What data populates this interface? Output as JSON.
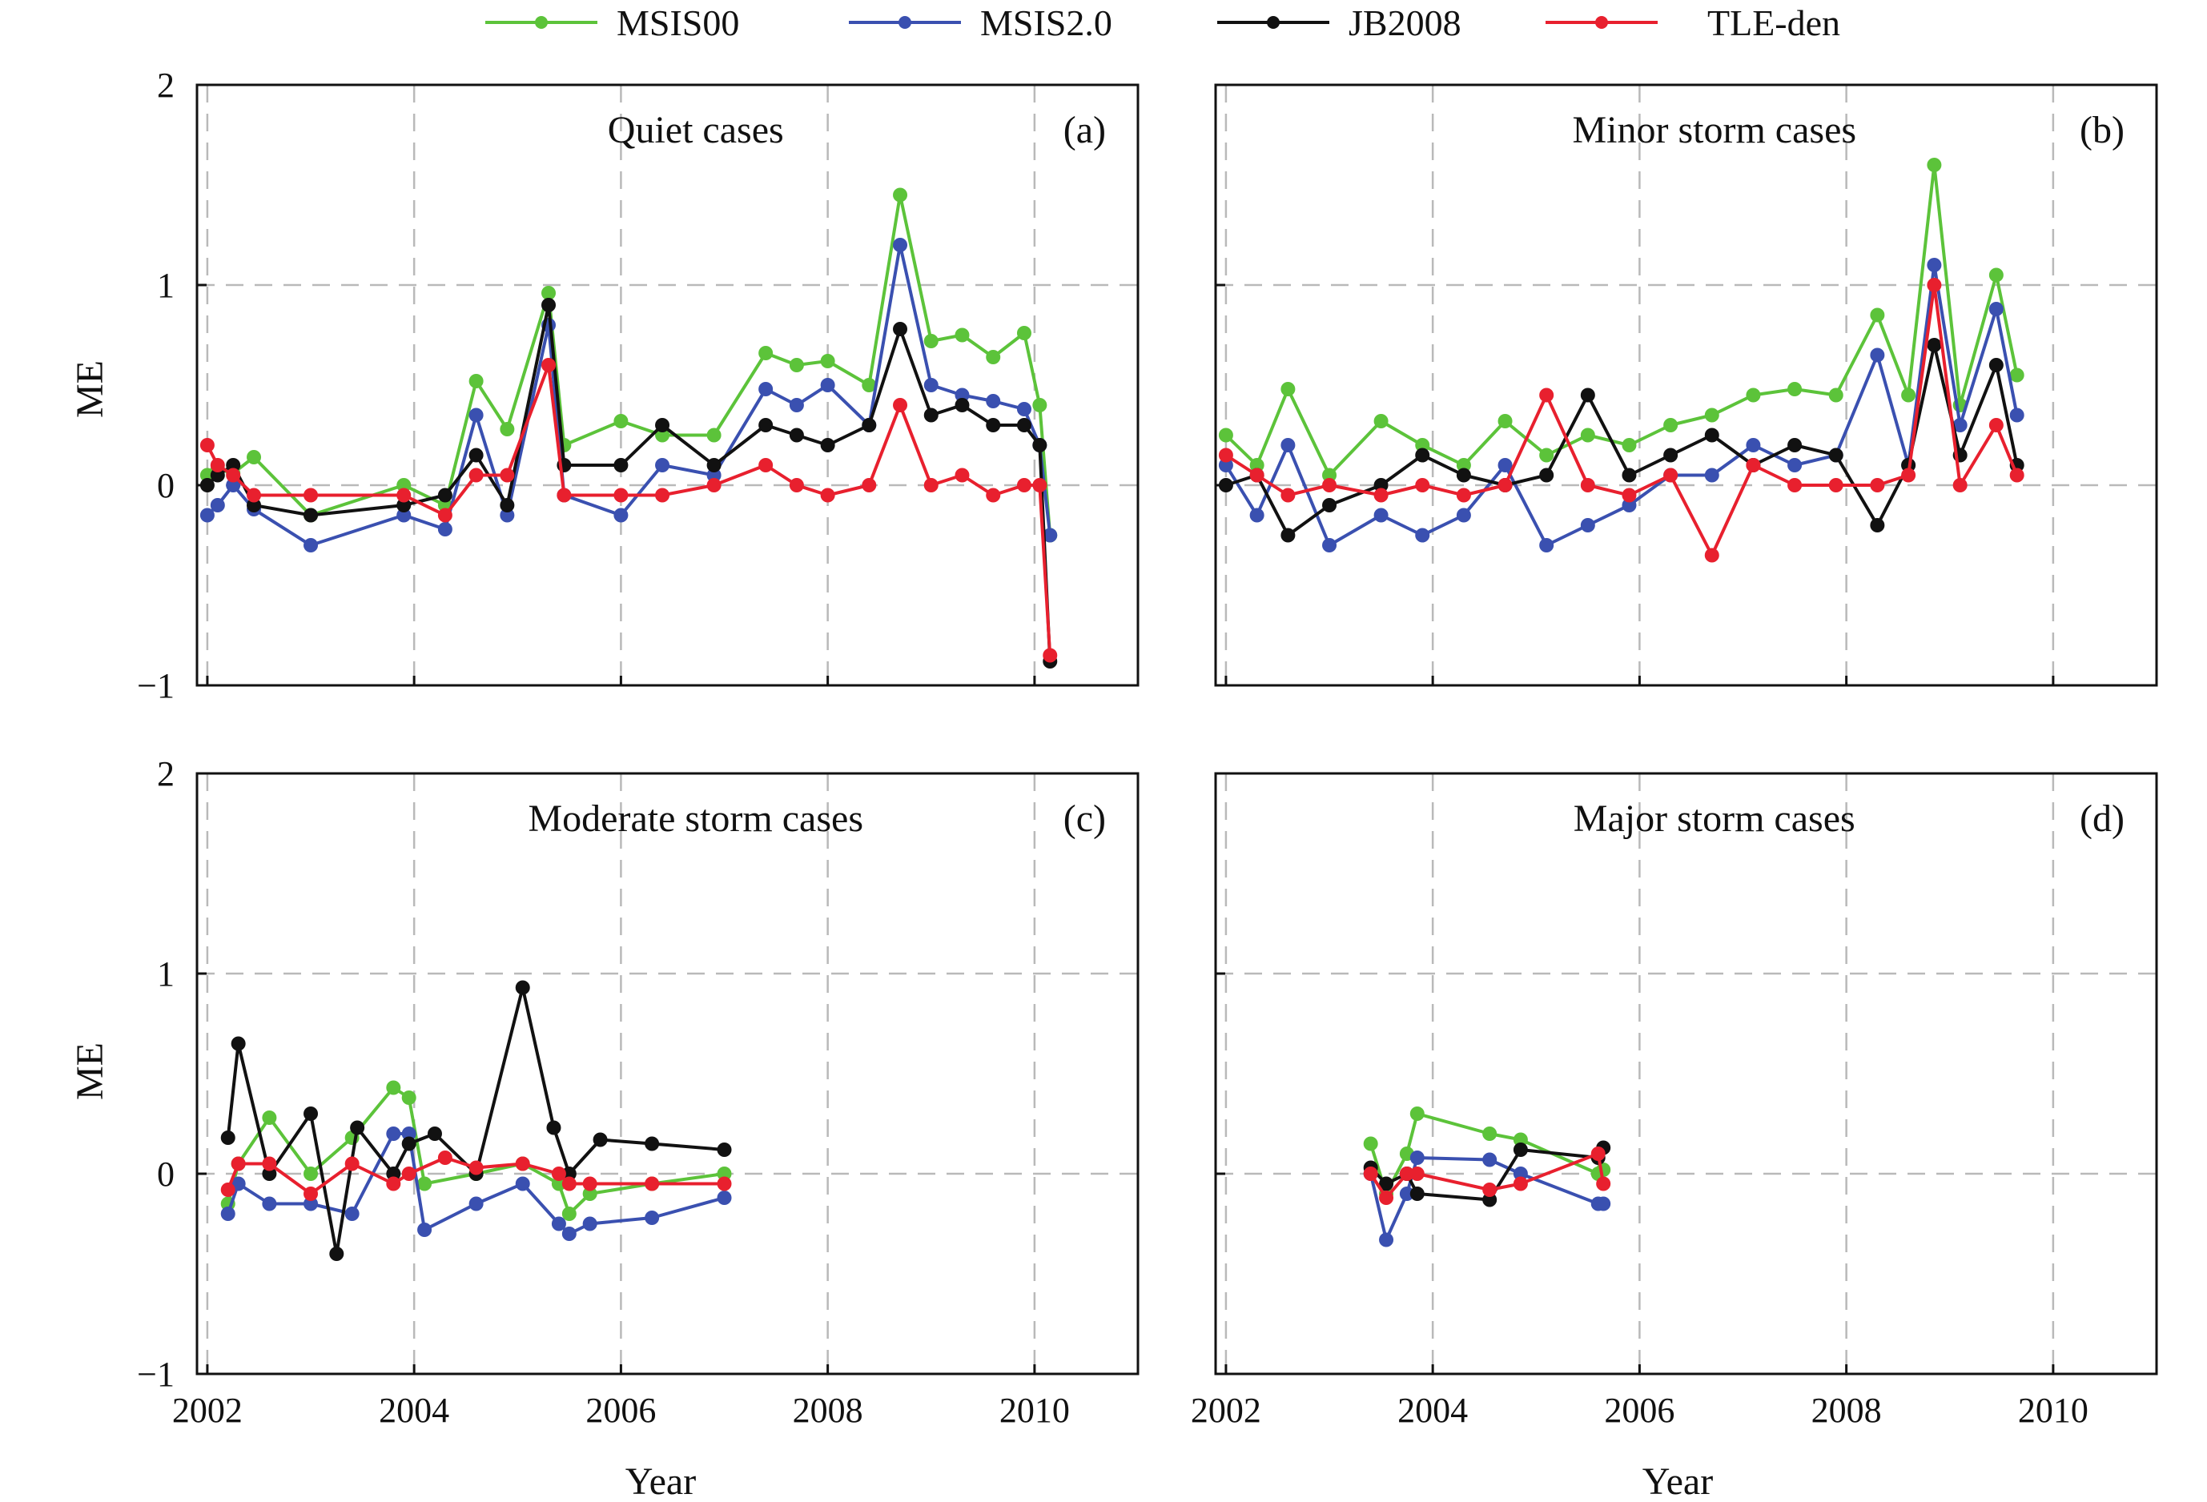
{
  "legend": [
    {
      "name": "MSIS00",
      "color": "#5cc33a"
    },
    {
      "name": "MSIS2.0",
      "color": "#3a50b0"
    },
    {
      "name": "JB2008",
      "color": "#111111"
    },
    {
      "name": "TLE-den",
      "color": "#e8202e"
    }
  ],
  "x_ticks": [
    "2002",
    "2004",
    "2006",
    "2008",
    "2010"
  ],
  "y_ticks": [
    "2",
    "1",
    "0",
    "−1"
  ],
  "y_label": "ME",
  "x_label": "Year",
  "chart_data": [
    {
      "type": "line",
      "panel_label": "(a)",
      "title": "Quiet cases",
      "xlabel": "",
      "ylabel": "ME",
      "xlim": [
        2001.9,
        2011.0
      ],
      "ylim": [
        -1,
        2
      ],
      "grid": true,
      "series": [
        {
          "name": "MSIS00",
          "x": [
            2002.0,
            2002.1,
            2002.25,
            2002.45,
            2003.0,
            2003.9,
            2004.3,
            2004.6,
            2004.9,
            2005.3,
            2005.45,
            2006.0,
            2006.4,
            2006.9,
            2007.4,
            2007.7,
            2008.0,
            2008.4,
            2008.7,
            2009.0,
            2009.3,
            2009.6,
            2009.9,
            2010.05,
            2010.15
          ],
          "y": [
            0.05,
            0.08,
            0.06,
            0.14,
            -0.15,
            0.0,
            -0.1,
            0.52,
            0.28,
            0.96,
            0.2,
            0.32,
            0.25,
            0.25,
            0.66,
            0.6,
            0.62,
            0.5,
            1.45,
            0.72,
            0.75,
            0.64,
            0.76,
            0.4,
            -0.25
          ]
        },
        {
          "name": "MSIS2.0",
          "x": [
            2002.0,
            2002.1,
            2002.25,
            2002.45,
            2003.0,
            2003.9,
            2004.3,
            2004.6,
            2004.9,
            2005.3,
            2005.45,
            2006.0,
            2006.4,
            2006.9,
            2007.4,
            2007.7,
            2008.0,
            2008.4,
            2008.7,
            2009.0,
            2009.3,
            2009.6,
            2009.9,
            2010.05,
            2010.15
          ],
          "y": [
            -0.15,
            -0.1,
            0.0,
            -0.12,
            -0.3,
            -0.15,
            -0.22,
            0.35,
            -0.15,
            0.8,
            -0.05,
            -0.15,
            0.1,
            0.05,
            0.48,
            0.4,
            0.5,
            0.3,
            1.2,
            0.5,
            0.45,
            0.42,
            0.38,
            0.2,
            -0.25
          ]
        },
        {
          "name": "JB2008",
          "x": [
            2002.0,
            2002.1,
            2002.25,
            2002.45,
            2003.0,
            2003.9,
            2004.3,
            2004.6,
            2004.9,
            2005.3,
            2005.45,
            2006.0,
            2006.4,
            2006.9,
            2007.4,
            2007.7,
            2008.0,
            2008.4,
            2008.7,
            2009.0,
            2009.3,
            2009.6,
            2009.9,
            2010.05,
            2010.15
          ],
          "y": [
            0.0,
            0.05,
            0.1,
            -0.1,
            -0.15,
            -0.1,
            -0.05,
            0.15,
            -0.1,
            0.9,
            0.1,
            0.1,
            0.3,
            0.1,
            0.3,
            0.25,
            0.2,
            0.3,
            0.78,
            0.35,
            0.4,
            0.3,
            0.3,
            0.2,
            -0.88
          ]
        },
        {
          "name": "TLE-den",
          "x": [
            2002.0,
            2002.1,
            2002.25,
            2002.45,
            2003.0,
            2003.9,
            2004.3,
            2004.6,
            2004.9,
            2005.3,
            2005.45,
            2006.0,
            2006.4,
            2006.9,
            2007.4,
            2007.7,
            2008.0,
            2008.4,
            2008.7,
            2009.0,
            2009.3,
            2009.6,
            2009.9,
            2010.05,
            2010.15
          ],
          "y": [
            0.2,
            0.1,
            0.05,
            -0.05,
            -0.05,
            -0.05,
            -0.15,
            0.05,
            0.05,
            0.6,
            -0.05,
            -0.05,
            -0.05,
            0.0,
            0.1,
            0.0,
            -0.05,
            0.0,
            0.4,
            0.0,
            0.05,
            -0.05,
            0.0,
            0.0,
            -0.85
          ]
        }
      ]
    },
    {
      "type": "line",
      "panel_label": "(b)",
      "title": "Minor storm cases",
      "xlabel": "",
      "ylabel": "",
      "xlim": [
        2001.9,
        2011.0
      ],
      "ylim": [
        -1,
        2
      ],
      "grid": true,
      "series": [
        {
          "name": "MSIS00",
          "x": [
            2002.0,
            2002.3,
            2002.6,
            2003.0,
            2003.5,
            2003.9,
            2004.3,
            2004.7,
            2005.1,
            2005.5,
            2005.9,
            2006.3,
            2006.7,
            2007.1,
            2007.5,
            2007.9,
            2008.3,
            2008.6,
            2008.85,
            2009.1,
            2009.45,
            2009.65
          ],
          "y": [
            0.25,
            0.1,
            0.48,
            0.05,
            0.32,
            0.2,
            0.1,
            0.32,
            0.15,
            0.25,
            0.2,
            0.3,
            0.35,
            0.45,
            0.48,
            0.45,
            0.85,
            0.45,
            1.6,
            0.4,
            1.05,
            0.55
          ]
        },
        {
          "name": "MSIS2.0",
          "x": [
            2002.0,
            2002.3,
            2002.6,
            2003.0,
            2003.5,
            2003.9,
            2004.3,
            2004.7,
            2005.1,
            2005.5,
            2005.9,
            2006.3,
            2006.7,
            2007.1,
            2007.5,
            2007.9,
            2008.3,
            2008.6,
            2008.85,
            2009.1,
            2009.45,
            2009.65
          ],
          "y": [
            0.1,
            -0.15,
            0.2,
            -0.3,
            -0.15,
            -0.25,
            -0.15,
            0.1,
            -0.3,
            -0.2,
            -0.1,
            0.05,
            0.05,
            0.2,
            0.1,
            0.15,
            0.65,
            0.1,
            1.1,
            0.3,
            0.88,
            0.35
          ]
        },
        {
          "name": "JB2008",
          "x": [
            2002.0,
            2002.3,
            2002.6,
            2003.0,
            2003.5,
            2003.9,
            2004.3,
            2004.7,
            2005.1,
            2005.5,
            2005.9,
            2006.3,
            2006.7,
            2007.1,
            2007.5,
            2007.9,
            2008.3,
            2008.6,
            2008.85,
            2009.1,
            2009.45,
            2009.65
          ],
          "y": [
            0.0,
            0.05,
            -0.25,
            -0.1,
            0.0,
            0.15,
            0.05,
            0.0,
            0.05,
            0.45,
            0.05,
            0.15,
            0.25,
            0.1,
            0.2,
            0.15,
            -0.2,
            0.1,
            0.7,
            0.15,
            0.6,
            0.1
          ]
        },
        {
          "name": "TLE-den",
          "x": [
            2002.0,
            2002.3,
            2002.6,
            2003.0,
            2003.5,
            2003.9,
            2004.3,
            2004.7,
            2005.1,
            2005.5,
            2005.9,
            2006.3,
            2006.7,
            2007.1,
            2007.5,
            2007.9,
            2008.3,
            2008.6,
            2008.85,
            2009.1,
            2009.45,
            2009.65
          ],
          "y": [
            0.15,
            0.05,
            -0.05,
            0.0,
            -0.05,
            0.0,
            -0.05,
            0.0,
            0.45,
            0.0,
            -0.05,
            0.05,
            -0.35,
            0.1,
            0.0,
            0.0,
            0.0,
            0.05,
            1.0,
            0.0,
            0.3,
            0.05
          ]
        }
      ]
    },
    {
      "type": "line",
      "panel_label": "(c)",
      "title": "Moderate storm cases",
      "xlabel": "Year",
      "ylabel": "ME",
      "xlim": [
        2001.9,
        2011.0
      ],
      "ylim": [
        -1,
        2
      ],
      "grid": true,
      "series": [
        {
          "name": "MSIS00",
          "x": [
            2002.2,
            2002.3,
            2002.6,
            2003.0,
            2003.4,
            2003.8,
            2003.95,
            2004.1,
            2004.6,
            2005.05,
            2005.4,
            2005.5,
            2005.7,
            2006.3,
            2007.0
          ],
          "y": [
            -0.15,
            0.05,
            0.28,
            0.0,
            0.18,
            0.43,
            0.38,
            -0.05,
            0.0,
            0.05,
            -0.05,
            -0.2,
            -0.1,
            -0.05,
            0.0
          ]
        },
        {
          "name": "MSIS2.0",
          "x": [
            2002.2,
            2002.3,
            2002.6,
            2003.0,
            2003.4,
            2003.8,
            2003.95,
            2004.1,
            2004.6,
            2005.05,
            2005.4,
            2005.5,
            2005.7,
            2006.3,
            2007.0
          ],
          "y": [
            -0.2,
            -0.05,
            -0.15,
            -0.15,
            -0.2,
            0.2,
            0.2,
            -0.28,
            -0.15,
            -0.05,
            -0.25,
            -0.3,
            -0.25,
            -0.22,
            -0.12
          ]
        },
        {
          "name": "JB2008",
          "x": [
            2002.2,
            2002.3,
            2002.6,
            2003.0,
            2003.25,
            2003.45,
            2003.8,
            2003.95,
            2004.2,
            2004.6,
            2005.05,
            2005.35,
            2005.5,
            2005.8,
            2006.3,
            2007.0
          ],
          "y": [
            0.18,
            0.65,
            0.0,
            0.3,
            -0.4,
            0.23,
            0.0,
            0.15,
            0.2,
            0.0,
            0.93,
            0.23,
            0.0,
            0.17,
            0.15,
            0.12
          ]
        },
        {
          "name": "TLE-den",
          "x": [
            2002.2,
            2002.3,
            2002.6,
            2003.0,
            2003.4,
            2003.8,
            2003.95,
            2004.3,
            2004.6,
            2005.05,
            2005.4,
            2005.5,
            2005.7,
            2006.3,
            2007.0
          ],
          "y": [
            -0.08,
            0.05,
            0.05,
            -0.1,
            0.05,
            -0.05,
            0.0,
            0.08,
            0.03,
            0.05,
            0.0,
            -0.05,
            -0.05,
            -0.05,
            -0.05
          ]
        }
      ]
    },
    {
      "type": "line",
      "panel_label": "(d)",
      "title": "Major storm cases",
      "xlabel": "Year",
      "ylabel": "",
      "xlim": [
        2001.9,
        2011.0
      ],
      "ylim": [
        -1,
        2
      ],
      "grid": true,
      "series": [
        {
          "name": "MSIS00",
          "x": [
            2003.4,
            2003.55,
            2003.75,
            2003.85,
            2004.55,
            2004.85,
            2005.6,
            2005.65
          ],
          "y": [
            0.15,
            -0.1,
            0.1,
            0.3,
            0.2,
            0.17,
            0.0,
            0.02
          ]
        },
        {
          "name": "MSIS2.0",
          "x": [
            2003.4,
            2003.55,
            2003.75,
            2003.85,
            2004.55,
            2004.85,
            2005.6,
            2005.65
          ],
          "y": [
            0.0,
            -0.33,
            -0.1,
            0.08,
            0.07,
            0.0,
            -0.15,
            -0.15
          ]
        },
        {
          "name": "JB2008",
          "x": [
            2003.4,
            2003.55,
            2003.75,
            2003.85,
            2004.55,
            2004.85,
            2005.6,
            2005.65
          ],
          "y": [
            0.03,
            -0.05,
            0.0,
            -0.1,
            -0.13,
            0.12,
            0.08,
            0.13
          ]
        },
        {
          "name": "TLE-den",
          "x": [
            2003.4,
            2003.55,
            2003.75,
            2003.85,
            2004.55,
            2004.85,
            2005.6,
            2005.65
          ],
          "y": [
            0.0,
            -0.12,
            0.0,
            0.0,
            -0.08,
            -0.05,
            0.1,
            -0.05
          ]
        }
      ]
    }
  ]
}
